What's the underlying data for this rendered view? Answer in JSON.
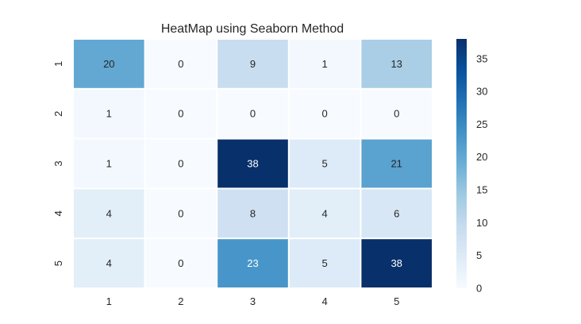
{
  "chart_data": {
    "type": "heatmap",
    "title": "HeatMap using Seaborn Method",
    "x_categories": [
      "1",
      "2",
      "3",
      "4",
      "5"
    ],
    "y_categories": [
      "1",
      "2",
      "3",
      "4",
      "5"
    ],
    "values": [
      [
        20,
        0,
        9,
        1,
        13
      ],
      [
        1,
        0,
        0,
        0,
        0
      ],
      [
        1,
        0,
        38,
        5,
        21
      ],
      [
        4,
        0,
        8,
        4,
        6
      ],
      [
        4,
        0,
        23,
        5,
        38
      ]
    ],
    "annotated": true,
    "colormap": "Blues",
    "vmin": 0,
    "vmax": 38,
    "colorbar_ticks": [
      0,
      5,
      10,
      15,
      20,
      25,
      30,
      35
    ],
    "xlabel": "",
    "ylabel": ""
  }
}
